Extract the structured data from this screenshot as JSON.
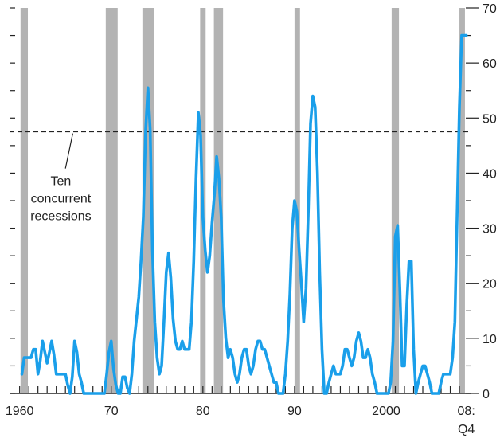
{
  "chart_data": {
    "type": "line",
    "title": "",
    "xlabel": "",
    "ylabel": "",
    "xlim": [
      1958.9,
      2009.3
    ],
    "ylim": [
      0,
      70
    ],
    "y_ticks": [
      0,
      10,
      20,
      30,
      40,
      50,
      60,
      70
    ],
    "x_tick_labels": [
      {
        "x": 1960,
        "label": "1960"
      },
      {
        "x": 1970,
        "label": "70"
      },
      {
        "x": 1980,
        "label": "80"
      },
      {
        "x": 1990,
        "label": "90"
      },
      {
        "x": 2000,
        "label": "2000"
      },
      {
        "x": 2008.75,
        "label": "08:",
        "label2": "Q4"
      }
    ],
    "grid": false,
    "recession_bands": [
      [
        1960.1,
        1960.9
      ],
      [
        1969.4,
        1970.7
      ],
      [
        1973.4,
        1974.7
      ],
      [
        1979.7,
        1980.3
      ],
      [
        1981.2,
        1982.2
      ],
      [
        1990.0,
        1990.6
      ],
      [
        2000.6,
        2001.4
      ],
      [
        2008.0,
        2008.6
      ]
    ],
    "reference_line": {
      "y": 47.5,
      "label_lines": [
        "Ten",
        "concurrent",
        "recessions"
      ]
    },
    "series": [
      {
        "color": "#1a9fea",
        "points": [
          [
            1960.25,
            3.5
          ],
          [
            1960.5,
            6.5
          ],
          [
            1960.75,
            6.5
          ],
          [
            1961.0,
            6.5
          ],
          [
            1961.25,
            6.5
          ],
          [
            1961.5,
            8
          ],
          [
            1961.75,
            8
          ],
          [
            1962.0,
            3.5
          ],
          [
            1962.25,
            6
          ],
          [
            1962.5,
            9.5
          ],
          [
            1962.75,
            7.5
          ],
          [
            1963.0,
            5.5
          ],
          [
            1963.25,
            7.5
          ],
          [
            1963.5,
            9.5
          ],
          [
            1963.75,
            7
          ],
          [
            1964.0,
            3.5
          ],
          [
            1964.25,
            3.5
          ],
          [
            1964.5,
            3.5
          ],
          [
            1964.75,
            3.5
          ],
          [
            1965.0,
            3.5
          ],
          [
            1965.25,
            1.5
          ],
          [
            1965.5,
            0
          ],
          [
            1965.75,
            3
          ],
          [
            1966.0,
            9.5
          ],
          [
            1966.25,
            7.5
          ],
          [
            1966.5,
            3.5
          ],
          [
            1966.75,
            2
          ],
          [
            1967.0,
            0
          ],
          [
            1967.25,
            0
          ],
          [
            1967.5,
            0
          ],
          [
            1967.75,
            0
          ],
          [
            1968.0,
            0
          ],
          [
            1968.25,
            0
          ],
          [
            1968.5,
            0
          ],
          [
            1968.75,
            0
          ],
          [
            1969.0,
            0
          ],
          [
            1969.25,
            0
          ],
          [
            1969.5,
            3.5
          ],
          [
            1969.75,
            7.5
          ],
          [
            1970.0,
            9.5
          ],
          [
            1970.25,
            4.5
          ],
          [
            1970.5,
            1.5
          ],
          [
            1970.75,
            0
          ],
          [
            1971.0,
            0
          ],
          [
            1971.25,
            3
          ],
          [
            1971.5,
            3
          ],
          [
            1971.75,
            1
          ],
          [
            1972.0,
            0
          ],
          [
            1972.25,
            3.5
          ],
          [
            1972.5,
            9.5
          ],
          [
            1972.75,
            13.5
          ],
          [
            1973.0,
            17.5
          ],
          [
            1973.25,
            24
          ],
          [
            1973.5,
            32
          ],
          [
            1973.75,
            47.5
          ],
          [
            1974.0,
            55.5
          ],
          [
            1974.25,
            48
          ],
          [
            1974.5,
            26
          ],
          [
            1974.75,
            13
          ],
          [
            1975.0,
            6.5
          ],
          [
            1975.25,
            3.5
          ],
          [
            1975.5,
            5
          ],
          [
            1975.75,
            13
          ],
          [
            1976.0,
            22
          ],
          [
            1976.25,
            25.5
          ],
          [
            1976.5,
            21
          ],
          [
            1976.75,
            13.5
          ],
          [
            1977.0,
            9.5
          ],
          [
            1977.25,
            8
          ],
          [
            1977.5,
            8
          ],
          [
            1977.75,
            9.5
          ],
          [
            1978.0,
            8
          ],
          [
            1978.25,
            8
          ],
          [
            1978.5,
            8
          ],
          [
            1978.75,
            13
          ],
          [
            1979.0,
            24
          ],
          [
            1979.25,
            39
          ],
          [
            1979.5,
            51
          ],
          [
            1979.75,
            47
          ],
          [
            1980.0,
            32
          ],
          [
            1980.25,
            26
          ],
          [
            1980.5,
            22
          ],
          [
            1980.75,
            25
          ],
          [
            1981.0,
            31
          ],
          [
            1981.25,
            36
          ],
          [
            1981.5,
            43
          ],
          [
            1981.75,
            39
          ],
          [
            1982.0,
            32
          ],
          [
            1982.25,
            17
          ],
          [
            1982.5,
            10
          ],
          [
            1982.75,
            6.5
          ],
          [
            1983.0,
            8
          ],
          [
            1983.25,
            6.5
          ],
          [
            1983.5,
            3.5
          ],
          [
            1983.75,
            2
          ],
          [
            1984.0,
            3.5
          ],
          [
            1984.25,
            6.5
          ],
          [
            1984.5,
            8
          ],
          [
            1984.75,
            8
          ],
          [
            1985.0,
            5
          ],
          [
            1985.25,
            3.5
          ],
          [
            1985.5,
            5
          ],
          [
            1985.75,
            8
          ],
          [
            1986.0,
            9.5
          ],
          [
            1986.25,
            9.5
          ],
          [
            1986.5,
            8
          ],
          [
            1986.75,
            8
          ],
          [
            1987.0,
            6.5
          ],
          [
            1987.25,
            5
          ],
          [
            1987.5,
            3.5
          ],
          [
            1987.75,
            2
          ],
          [
            1988.0,
            2
          ],
          [
            1988.25,
            0
          ],
          [
            1988.5,
            0
          ],
          [
            1988.75,
            0
          ],
          [
            1989.0,
            3.5
          ],
          [
            1989.25,
            9.5
          ],
          [
            1989.5,
            18
          ],
          [
            1989.75,
            30
          ],
          [
            1990.0,
            35
          ],
          [
            1990.25,
            33
          ],
          [
            1990.5,
            26
          ],
          [
            1990.75,
            20
          ],
          [
            1991.0,
            13
          ],
          [
            1991.25,
            19
          ],
          [
            1991.5,
            33
          ],
          [
            1991.75,
            49
          ],
          [
            1992.0,
            54
          ],
          [
            1992.25,
            52
          ],
          [
            1992.5,
            40
          ],
          [
            1992.75,
            22
          ],
          [
            1993.0,
            8
          ],
          [
            1993.25,
            0
          ],
          [
            1993.5,
            0
          ],
          [
            1993.75,
            2
          ],
          [
            1994.0,
            3.5
          ],
          [
            1994.25,
            5
          ],
          [
            1994.5,
            3.5
          ],
          [
            1994.75,
            3.5
          ],
          [
            1995.0,
            3.5
          ],
          [
            1995.25,
            5
          ],
          [
            1995.5,
            8
          ],
          [
            1995.75,
            8
          ],
          [
            1996.0,
            6.5
          ],
          [
            1996.25,
            5
          ],
          [
            1996.5,
            6.5
          ],
          [
            1996.75,
            9.5
          ],
          [
            1997.0,
            11
          ],
          [
            1997.25,
            9.5
          ],
          [
            1997.5,
            6.5
          ],
          [
            1997.75,
            6.5
          ],
          [
            1998.0,
            8
          ],
          [
            1998.25,
            6.5
          ],
          [
            1998.5,
            3.5
          ],
          [
            1998.75,
            2
          ],
          [
            1999.0,
            0
          ],
          [
            1999.25,
            0
          ],
          [
            1999.5,
            0
          ],
          [
            1999.75,
            0
          ],
          [
            2000.0,
            0
          ],
          [
            2000.25,
            0
          ],
          [
            2000.5,
            2
          ],
          [
            2000.75,
            9.5
          ],
          [
            2001.0,
            28.5
          ],
          [
            2001.25,
            30.5
          ],
          [
            2001.5,
            19
          ],
          [
            2001.75,
            5
          ],
          [
            2002.0,
            5
          ],
          [
            2002.25,
            16
          ],
          [
            2002.5,
            24
          ],
          [
            2002.75,
            24
          ],
          [
            2003.0,
            8
          ],
          [
            2003.25,
            0
          ],
          [
            2003.5,
            2
          ],
          [
            2003.75,
            3.5
          ],
          [
            2004.0,
            5
          ],
          [
            2004.25,
            5
          ],
          [
            2004.5,
            3.5
          ],
          [
            2004.75,
            2
          ],
          [
            2005.0,
            0
          ],
          [
            2005.25,
            0
          ],
          [
            2005.5,
            0
          ],
          [
            2005.75,
            0
          ],
          [
            2006.0,
            2
          ],
          [
            2006.25,
            3.5
          ],
          [
            2006.5,
            3.5
          ],
          [
            2006.75,
            3.5
          ],
          [
            2007.0,
            3.5
          ],
          [
            2007.25,
            6.5
          ],
          [
            2007.5,
            13
          ],
          [
            2007.75,
            33
          ],
          [
            2008.0,
            52
          ],
          [
            2008.25,
            65
          ],
          [
            2008.5,
            65
          ],
          [
            2008.75,
            65
          ]
        ]
      }
    ]
  }
}
